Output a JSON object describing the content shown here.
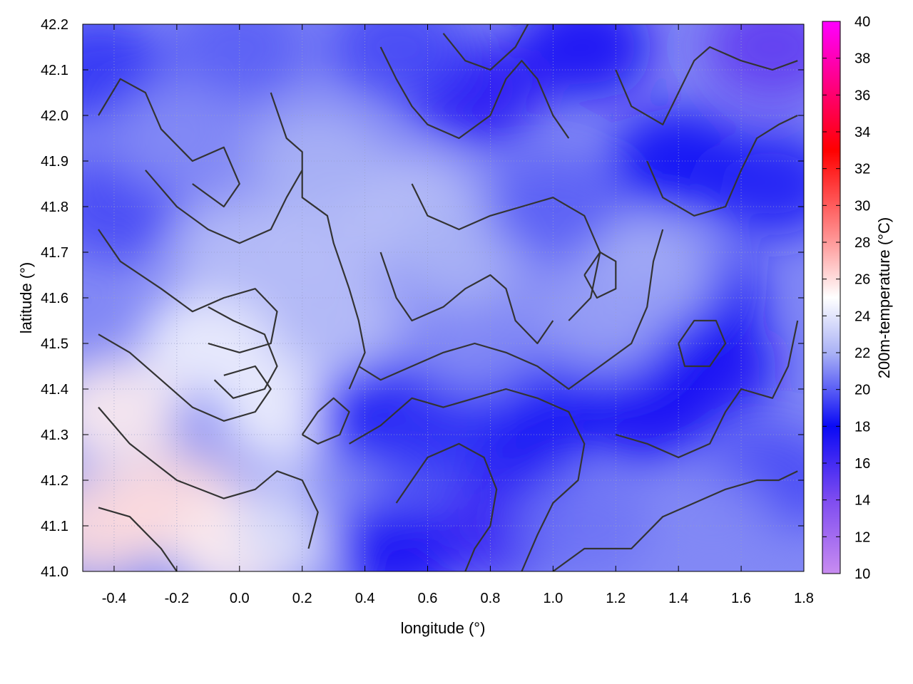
{
  "chart_data": {
    "type": "heatmap",
    "title": "",
    "xlabel": "longitude (°)",
    "ylabel": "latitude (°)",
    "colorbar_label": "200m-temperature (°C)",
    "xlim": [
      -0.5,
      1.8
    ],
    "ylim": [
      41.0,
      42.2
    ],
    "x_ticks": [
      "-0.4",
      "-0.2",
      "0.0",
      "0.2",
      "0.4",
      "0.6",
      "0.8",
      "1.0",
      "1.2",
      "1.4",
      "1.6",
      "1.8"
    ],
    "y_ticks": [
      "41.0",
      "41.1",
      "41.2",
      "41.3",
      "41.4",
      "41.5",
      "41.6",
      "41.7",
      "41.8",
      "41.9",
      "42.0",
      "42.1",
      "42.2"
    ],
    "colorbar_range": [
      10,
      40
    ],
    "colorbar_ticks": [
      "10",
      "12",
      "14",
      "16",
      "18",
      "20",
      "22",
      "24",
      "26",
      "28",
      "30",
      "32",
      "34",
      "36",
      "38",
      "40"
    ],
    "colorbar_stops": [
      {
        "value": 10,
        "color": "#c88cf0"
      },
      {
        "value": 14,
        "color": "#7e4cf0"
      },
      {
        "value": 18,
        "color": "#0a0af5"
      },
      {
        "value": 22,
        "color": "#aab2f5"
      },
      {
        "value": 25,
        "color": "#ffffff"
      },
      {
        "value": 28,
        "color": "#ff9a9a"
      },
      {
        "value": 33,
        "color": "#ff0000"
      },
      {
        "value": 40,
        "color": "#ff00ff"
      }
    ],
    "grid": true,
    "contour_color": "#333333",
    "field_samples": [
      {
        "x": -0.45,
        "y": 41.1,
        "value": 26.0
      },
      {
        "x": -0.4,
        "y": 41.35,
        "value": 25.5
      },
      {
        "x": -0.2,
        "y": 41.15,
        "value": 26.0
      },
      {
        "x": 0.0,
        "y": 41.05,
        "value": 25.5
      },
      {
        "x": -0.1,
        "y": 41.5,
        "value": 24.5
      },
      {
        "x": 0.15,
        "y": 41.35,
        "value": 24.5
      },
      {
        "x": 0.2,
        "y": 41.1,
        "value": 23.5
      },
      {
        "x": 0.0,
        "y": 41.7,
        "value": 22.5
      },
      {
        "x": 0.3,
        "y": 41.75,
        "value": 22.5
      },
      {
        "x": 0.55,
        "y": 41.8,
        "value": 22.5
      },
      {
        "x": 0.25,
        "y": 41.9,
        "value": 22.0
      },
      {
        "x": 0.4,
        "y": 41.2,
        "value": 21.0
      },
      {
        "x": 0.5,
        "y": 41.05,
        "value": 17.5
      },
      {
        "x": 0.45,
        "y": 41.35,
        "value": 18.0
      },
      {
        "x": 0.85,
        "y": 41.1,
        "value": 16.5
      },
      {
        "x": 0.9,
        "y": 41.3,
        "value": 17.5
      },
      {
        "x": 1.0,
        "y": 41.4,
        "value": 18.5
      },
      {
        "x": 1.3,
        "y": 41.35,
        "value": 17.5
      },
      {
        "x": 1.5,
        "y": 41.45,
        "value": 17.5
      },
      {
        "x": 1.45,
        "y": 41.6,
        "value": 18.0
      },
      {
        "x": 1.3,
        "y": 41.65,
        "value": 22.0
      },
      {
        "x": 1.15,
        "y": 41.55,
        "value": 21.5
      },
      {
        "x": 1.7,
        "y": 41.2,
        "value": 19.5
      },
      {
        "x": 1.5,
        "y": 41.1,
        "value": 21.0
      },
      {
        "x": 1.1,
        "y": 41.1,
        "value": 20.5
      },
      {
        "x": 0.75,
        "y": 41.5,
        "value": 21.0
      },
      {
        "x": 0.7,
        "y": 41.7,
        "value": 22.0
      },
      {
        "x": 1.0,
        "y": 41.8,
        "value": 20.0
      },
      {
        "x": 1.4,
        "y": 41.9,
        "value": 18.0
      },
      {
        "x": 1.7,
        "y": 41.85,
        "value": 18.5
      },
      {
        "x": 1.7,
        "y": 42.15,
        "value": 15.0
      },
      {
        "x": 1.1,
        "y": 42.15,
        "value": 17.5
      },
      {
        "x": 0.75,
        "y": 42.05,
        "value": 17.0
      },
      {
        "x": 0.5,
        "y": 42.15,
        "value": 19.5
      },
      {
        "x": 0.0,
        "y": 42.15,
        "value": 20.0
      },
      {
        "x": -0.45,
        "y": 42.1,
        "value": 19.0
      },
      {
        "x": -0.4,
        "y": 41.8,
        "value": 19.5
      },
      {
        "x": -0.2,
        "y": 41.95,
        "value": 21.0
      },
      {
        "x": 0.6,
        "y": 41.3,
        "value": 19.0
      },
      {
        "x": 0.3,
        "y": 41.55,
        "value": 22.5
      }
    ],
    "contours": [
      [
        [
          -0.45,
          41.75
        ],
        [
          -0.38,
          41.68
        ],
        [
          -0.25,
          41.62
        ],
        [
          -0.15,
          41.57
        ],
        [
          -0.05,
          41.6
        ],
        [
          0.05,
          41.62
        ],
        [
          0.12,
          41.57
        ],
        [
          0.1,
          41.5
        ],
        [
          0.0,
          41.48
        ],
        [
          -0.1,
          41.5
        ]
      ],
      [
        [
          -0.45,
          41.52
        ],
        [
          -0.35,
          41.48
        ],
        [
          -0.25,
          41.42
        ],
        [
          -0.15,
          41.36
        ],
        [
          -0.05,
          41.33
        ],
        [
          0.05,
          41.35
        ],
        [
          0.1,
          41.4
        ],
        [
          0.05,
          41.45
        ],
        [
          -0.05,
          41.43
        ]
      ],
      [
        [
          -0.45,
          41.36
        ],
        [
          -0.35,
          41.28
        ],
        [
          -0.2,
          41.2
        ],
        [
          -0.05,
          41.16
        ],
        [
          0.05,
          41.18
        ],
        [
          0.12,
          41.22
        ],
        [
          0.2,
          41.2
        ],
        [
          0.25,
          41.13
        ],
        [
          0.22,
          41.05
        ]
      ],
      [
        [
          -0.45,
          41.14
        ],
        [
          -0.35,
          41.12
        ],
        [
          -0.25,
          41.05
        ],
        [
          -0.2,
          41.0
        ]
      ],
      [
        [
          -0.45,
          42.0
        ],
        [
          -0.38,
          42.08
        ],
        [
          -0.3,
          42.05
        ],
        [
          -0.25,
          41.97
        ],
        [
          -0.15,
          41.9
        ],
        [
          -0.05,
          41.93
        ],
        [
          0.0,
          41.85
        ],
        [
          -0.05,
          41.8
        ],
        [
          -0.15,
          41.85
        ]
      ],
      [
        [
          -0.3,
          41.88
        ],
        [
          -0.2,
          41.8
        ],
        [
          -0.1,
          41.75
        ],
        [
          0.0,
          41.72
        ],
        [
          0.1,
          41.75
        ],
        [
          0.15,
          41.82
        ],
        [
          0.2,
          41.88
        ]
      ],
      [
        [
          0.1,
          42.05
        ],
        [
          0.15,
          41.95
        ],
        [
          0.2,
          41.92
        ],
        [
          0.2,
          41.82
        ],
        [
          0.28,
          41.78
        ],
        [
          0.3,
          41.72
        ],
        [
          0.35,
          41.62
        ],
        [
          0.38,
          41.55
        ],
        [
          0.4,
          41.48
        ],
        [
          0.35,
          41.4
        ]
      ],
      [
        [
          0.45,
          41.7
        ],
        [
          0.5,
          41.6
        ],
        [
          0.55,
          41.55
        ],
        [
          0.65,
          41.58
        ],
        [
          0.72,
          41.62
        ],
        [
          0.8,
          41.65
        ],
        [
          0.85,
          41.62
        ],
        [
          0.88,
          41.55
        ],
        [
          0.95,
          41.5
        ],
        [
          1.0,
          41.55
        ]
      ],
      [
        [
          0.55,
          41.85
        ],
        [
          0.6,
          41.78
        ],
        [
          0.7,
          41.75
        ],
        [
          0.8,
          41.78
        ],
        [
          0.9,
          41.8
        ],
        [
          1.0,
          41.82
        ],
        [
          1.1,
          41.78
        ],
        [
          1.15,
          41.7
        ],
        [
          1.12,
          41.6
        ],
        [
          1.05,
          41.55
        ]
      ],
      [
        [
          0.38,
          41.45
        ],
        [
          0.45,
          41.42
        ],
        [
          0.55,
          41.45
        ],
        [
          0.65,
          41.48
        ],
        [
          0.75,
          41.5
        ],
        [
          0.85,
          41.48
        ],
        [
          0.95,
          41.45
        ],
        [
          1.05,
          41.4
        ],
        [
          1.15,
          41.45
        ],
        [
          1.25,
          41.5
        ],
        [
          1.3,
          41.58
        ],
        [
          1.32,
          41.68
        ],
        [
          1.35,
          41.75
        ]
      ],
      [
        [
          0.35,
          41.28
        ],
        [
          0.45,
          41.32
        ],
        [
          0.55,
          41.38
        ],
        [
          0.65,
          41.36
        ],
        [
          0.75,
          41.38
        ],
        [
          0.85,
          41.4
        ],
        [
          0.95,
          41.38
        ],
        [
          1.05,
          41.35
        ],
        [
          1.1,
          41.28
        ],
        [
          1.08,
          41.2
        ],
        [
          1.0,
          41.15
        ],
        [
          0.95,
          41.08
        ],
        [
          0.9,
          41.0
        ]
      ],
      [
        [
          0.5,
          41.15
        ],
        [
          0.55,
          41.2
        ],
        [
          0.6,
          41.25
        ],
        [
          0.7,
          41.28
        ],
        [
          0.78,
          41.25
        ],
        [
          0.82,
          41.18
        ],
        [
          0.8,
          41.1
        ],
        [
          0.75,
          41.05
        ],
        [
          0.72,
          41.0
        ]
      ],
      [
        [
          1.0,
          41.0
        ],
        [
          1.1,
          41.05
        ],
        [
          1.25,
          41.05
        ],
        [
          1.35,
          41.12
        ],
        [
          1.45,
          41.15
        ],
        [
          1.55,
          41.18
        ],
        [
          1.65,
          41.2
        ],
        [
          1.72,
          41.2
        ],
        [
          1.78,
          41.22
        ]
      ],
      [
        [
          1.2,
          41.3
        ],
        [
          1.3,
          41.28
        ],
        [
          1.4,
          41.25
        ],
        [
          1.5,
          41.28
        ],
        [
          1.55,
          41.35
        ],
        [
          1.6,
          41.4
        ],
        [
          1.7,
          41.38
        ],
        [
          1.75,
          41.45
        ],
        [
          1.78,
          41.55
        ]
      ],
      [
        [
          1.3,
          41.9
        ],
        [
          1.35,
          41.82
        ],
        [
          1.45,
          41.78
        ],
        [
          1.55,
          41.8
        ],
        [
          1.6,
          41.88
        ],
        [
          1.65,
          41.95
        ],
        [
          1.72,
          41.98
        ],
        [
          1.78,
          42.0
        ]
      ],
      [
        [
          1.2,
          42.1
        ],
        [
          1.25,
          42.02
        ],
        [
          1.35,
          41.98
        ],
        [
          1.4,
          42.05
        ],
        [
          1.45,
          42.12
        ],
        [
          1.5,
          42.15
        ],
        [
          1.6,
          42.12
        ],
        [
          1.7,
          42.1
        ],
        [
          1.78,
          42.12
        ]
      ],
      [
        [
          0.45,
          42.15
        ],
        [
          0.5,
          42.08
        ],
        [
          0.55,
          42.02
        ],
        [
          0.6,
          41.98
        ],
        [
          0.7,
          41.95
        ],
        [
          0.8,
          42.0
        ],
        [
          0.85,
          42.08
        ],
        [
          0.9,
          42.12
        ],
        [
          0.95,
          42.08
        ],
        [
          1.0,
          42.0
        ],
        [
          1.05,
          41.95
        ]
      ],
      [
        [
          0.65,
          42.18
        ],
        [
          0.72,
          42.12
        ],
        [
          0.8,
          42.1
        ],
        [
          0.88,
          42.15
        ],
        [
          0.92,
          42.2
        ]
      ],
      [
        [
          0.2,
          41.3
        ],
        [
          0.25,
          41.35
        ],
        [
          0.3,
          41.38
        ],
        [
          0.35,
          41.35
        ],
        [
          0.32,
          41.3
        ],
        [
          0.25,
          41.28
        ],
        [
          0.2,
          41.3
        ]
      ],
      [
        [
          -0.1,
          41.58
        ],
        [
          -0.02,
          41.55
        ],
        [
          0.08,
          41.52
        ],
        [
          0.12,
          41.45
        ],
        [
          0.08,
          41.4
        ],
        [
          -0.02,
          41.38
        ],
        [
          -0.08,
          41.42
        ]
      ],
      [
        [
          1.4,
          41.5
        ],
        [
          1.45,
          41.55
        ],
        [
          1.52,
          41.55
        ],
        [
          1.55,
          41.5
        ],
        [
          1.5,
          41.45
        ],
        [
          1.42,
          41.45
        ],
        [
          1.4,
          41.5
        ]
      ],
      [
        [
          1.1,
          41.65
        ],
        [
          1.15,
          41.7
        ],
        [
          1.2,
          41.68
        ],
        [
          1.2,
          41.62
        ],
        [
          1.14,
          41.6
        ],
        [
          1.1,
          41.65
        ]
      ]
    ]
  }
}
